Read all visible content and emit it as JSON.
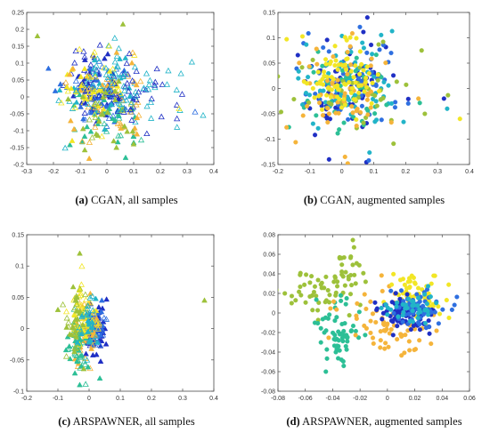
{
  "palette": [
    "#1f2fc4",
    "#2e6fe0",
    "#22b4c8",
    "#2cbf96",
    "#9dc13a",
    "#f5b43a",
    "#f2e625"
  ],
  "chart_data": [
    {
      "id": "a",
      "type": "scatter",
      "marker": "triangle",
      "fill": "mixed",
      "xlim": [
        -0.3,
        0.4
      ],
      "ylim": [
        -0.2,
        0.25
      ],
      "xticks": [
        "-0.3",
        "-0.2",
        "-0.1",
        "0",
        "0.1",
        "0.2",
        "0.3",
        "0.4"
      ],
      "yticks": [
        "-0.2",
        "-0.15",
        "-0.1",
        "-0.05",
        "0",
        "0.05",
        "0.1",
        "0.15",
        "0.2",
        "0.25"
      ],
      "caption_tag": "(a)",
      "caption_text": "CGAN, all samples",
      "grid": false,
      "clusters": [
        {
          "cx": -0.05,
          "cy": 0.03,
          "sx": 0.05,
          "sy": 0.05,
          "n": 75,
          "color": 0,
          "filled": 0.6
        },
        {
          "cx": -0.03,
          "cy": 0.0,
          "sx": 0.06,
          "sy": 0.06,
          "n": 65,
          "color": 1,
          "filled": 0.4
        },
        {
          "cx": 0.0,
          "cy": 0.02,
          "sx": 0.08,
          "sy": 0.06,
          "n": 55,
          "color": 2,
          "filled": 0.3
        },
        {
          "cx": 0.0,
          "cy": -0.08,
          "sx": 0.06,
          "sy": 0.04,
          "n": 35,
          "color": 3,
          "filled": 0.6
        },
        {
          "cx": -0.05,
          "cy": 0.02,
          "sx": 0.07,
          "sy": 0.06,
          "n": 50,
          "color": 6,
          "filled": 0.5
        },
        {
          "cx": 0.0,
          "cy": -0.02,
          "sx": 0.08,
          "sy": 0.07,
          "n": 45,
          "color": 5,
          "filled": 0.4
        },
        {
          "cx": 0.1,
          "cy": 0.0,
          "sx": 0.08,
          "sy": 0.05,
          "n": 40,
          "color": 0,
          "filled": 0.1
        },
        {
          "cx": 0.1,
          "cy": 0.02,
          "sx": 0.1,
          "sy": 0.05,
          "n": 35,
          "color": 2,
          "filled": 0.1
        },
        {
          "cx": 0.0,
          "cy": -0.05,
          "sx": 0.06,
          "sy": 0.06,
          "n": 30,
          "color": 4,
          "filled": 0.6
        }
      ],
      "points": [
        {
          "x": -0.26,
          "y": 0.18,
          "color": 4,
          "filled": true
        },
        {
          "x": 0.06,
          "y": 0.215,
          "color": 4,
          "filled": true
        },
        {
          "x": 0.36,
          "y": -0.055,
          "color": 2,
          "filled": false
        },
        {
          "x": 0.33,
          "y": -0.045,
          "color": 1,
          "filled": false
        },
        {
          "x": 0.27,
          "y": -0.035,
          "color": 6,
          "filled": false
        },
        {
          "x": 0.07,
          "y": -0.18,
          "color": 3,
          "filled": true
        },
        {
          "x": 0.1,
          "y": -0.14,
          "color": 4,
          "filled": true
        },
        {
          "x": -0.13,
          "y": -0.13,
          "color": 6,
          "filled": true
        }
      ]
    },
    {
      "id": "b",
      "type": "scatter",
      "marker": "circle",
      "fill": "filled",
      "xlim": [
        -0.2,
        0.4
      ],
      "ylim": [
        -0.15,
        0.15
      ],
      "xticks": [
        "-0.2",
        "-0.1",
        "0",
        "0.1",
        "0.2",
        "0.3",
        "0.4"
      ],
      "yticks": [
        "-0.15",
        "-0.1",
        "-0.05",
        "0",
        "0.05",
        "0.1",
        "0.15"
      ],
      "caption_tag": "(b)",
      "caption_text": "CGAN, augmented samples",
      "grid": false,
      "clusters": [
        {
          "cx": 0.0,
          "cy": 0.0,
          "sx": 0.07,
          "sy": 0.05,
          "n": 70,
          "color": 0,
          "filled": 1
        },
        {
          "cx": 0.02,
          "cy": 0.02,
          "sx": 0.08,
          "sy": 0.045,
          "n": 60,
          "color": 1,
          "filled": 1
        },
        {
          "cx": 0.02,
          "cy": 0.01,
          "sx": 0.08,
          "sy": 0.045,
          "n": 70,
          "color": 2,
          "filled": 1
        },
        {
          "cx": 0.03,
          "cy": -0.01,
          "sx": 0.08,
          "sy": 0.04,
          "n": 45,
          "color": 3,
          "filled": 1
        },
        {
          "cx": 0.05,
          "cy": 0.0,
          "sx": 0.09,
          "sy": 0.04,
          "n": 40,
          "color": 4,
          "filled": 1
        },
        {
          "cx": 0.0,
          "cy": 0.0,
          "sx": 0.07,
          "sy": 0.05,
          "n": 60,
          "color": 5,
          "filled": 1
        },
        {
          "cx": 0.0,
          "cy": 0.02,
          "sx": 0.06,
          "sy": 0.04,
          "n": 80,
          "color": 6,
          "filled": 1
        }
      ],
      "points": [
        {
          "x": 0.37,
          "y": -0.06,
          "color": 6,
          "filled": true
        },
        {
          "x": 0.33,
          "y": -0.04,
          "color": 2,
          "filled": true
        },
        {
          "x": 0.32,
          "y": -0.02,
          "color": 0,
          "filled": true
        },
        {
          "x": 0.26,
          "y": -0.05,
          "color": 4,
          "filled": true
        },
        {
          "x": 0.24,
          "y": -0.02,
          "color": 5,
          "filled": true
        },
        {
          "x": 0.25,
          "y": 0.075,
          "color": 4,
          "filled": true
        },
        {
          "x": 0.08,
          "y": 0.14,
          "color": 0,
          "filled": true
        },
        {
          "x": 0.01,
          "y": -0.135,
          "color": 5,
          "filled": true
        },
        {
          "x": -0.04,
          "y": -0.14,
          "color": 0,
          "filled": true
        }
      ]
    },
    {
      "id": "c",
      "type": "scatter",
      "marker": "triangle",
      "fill": "mixed",
      "xlim": [
        -0.2,
        0.4
      ],
      "ylim": [
        -0.1,
        0.15
      ],
      "xticks": [
        "-0.2",
        "-0.1",
        "0",
        "0.1",
        "0.2",
        "0.3",
        "0.4"
      ],
      "yticks": [
        "-0.1",
        "-0.05",
        "0",
        "0.05",
        "0.1",
        "0.15"
      ],
      "caption_tag": "(c)",
      "caption_text": "ARSPAWNER, all samples",
      "grid": false,
      "clusters": [
        {
          "cx": 0.02,
          "cy": 0.0,
          "sx": 0.015,
          "sy": 0.02,
          "n": 80,
          "color": 0,
          "filled": 0.8
        },
        {
          "cx": 0.02,
          "cy": 0.005,
          "sx": 0.015,
          "sy": 0.02,
          "n": 50,
          "color": 1,
          "filled": 0.6
        },
        {
          "cx": -0.01,
          "cy": 0.0,
          "sx": 0.02,
          "sy": 0.025,
          "n": 60,
          "color": 5,
          "filled": 0.4
        },
        {
          "cx": -0.03,
          "cy": -0.02,
          "sx": 0.02,
          "sy": 0.025,
          "n": 55,
          "color": 3,
          "filled": 0.5
        },
        {
          "cx": -0.02,
          "cy": 0.02,
          "sx": 0.02,
          "sy": 0.025,
          "n": 50,
          "color": 6,
          "filled": 0.4
        },
        {
          "cx": -0.04,
          "cy": 0.01,
          "sx": 0.02,
          "sy": 0.03,
          "n": 40,
          "color": 4,
          "filled": 0.6
        },
        {
          "cx": 0.0,
          "cy": 0.0,
          "sx": 0.015,
          "sy": 0.03,
          "n": 35,
          "color": 2,
          "filled": 0.5
        }
      ],
      "points": [
        {
          "x": -0.03,
          "y": 0.12,
          "color": 4,
          "filled": true
        },
        {
          "x": 0.37,
          "y": 0.045,
          "color": 4,
          "filled": true
        },
        {
          "x": -0.1,
          "y": 0.03,
          "color": 4,
          "filled": true
        },
        {
          "x": -0.03,
          "y": -0.09,
          "color": 3,
          "filled": true
        }
      ]
    },
    {
      "id": "d",
      "type": "scatter",
      "marker": "circle",
      "fill": "filled",
      "xlim": [
        -0.08,
        0.06
      ],
      "ylim": [
        -0.08,
        0.08
      ],
      "xticks": [
        "-0.08",
        "-0.06",
        "-0.04",
        "-0.02",
        "0",
        "0.02",
        "0.04",
        "0.06"
      ],
      "yticks": [
        "-0.08",
        "-0.06",
        "-0.04",
        "-0.02",
        "0",
        "0.02",
        "0.04",
        "0.06",
        "0.08"
      ],
      "caption_tag": "(d)",
      "caption_text": "ARSPAWNER, augmented samples",
      "grid": false,
      "clusters": [
        {
          "cx": -0.045,
          "cy": 0.025,
          "sx": 0.012,
          "sy": 0.012,
          "n": 55,
          "color": 4,
          "filled": 1
        },
        {
          "cx": -0.028,
          "cy": 0.05,
          "sx": 0.005,
          "sy": 0.01,
          "n": 15,
          "color": 4,
          "filled": 1
        },
        {
          "cx": -0.035,
          "cy": -0.02,
          "sx": 0.01,
          "sy": 0.018,
          "n": 60,
          "color": 3,
          "filled": 1
        },
        {
          "cx": 0.0,
          "cy": -0.01,
          "sx": 0.02,
          "sy": 0.018,
          "n": 70,
          "color": 5,
          "filled": 1
        },
        {
          "cx": 0.02,
          "cy": 0.02,
          "sx": 0.01,
          "sy": 0.008,
          "n": 60,
          "color": 6,
          "filled": 1
        },
        {
          "cx": 0.015,
          "cy": 0.0,
          "sx": 0.01,
          "sy": 0.009,
          "n": 90,
          "color": 0,
          "filled": 1
        },
        {
          "cx": 0.02,
          "cy": 0.005,
          "sx": 0.01,
          "sy": 0.009,
          "n": 60,
          "color": 1,
          "filled": 1
        },
        {
          "cx": 0.018,
          "cy": 0.005,
          "sx": 0.01,
          "sy": 0.008,
          "n": 40,
          "color": 2,
          "filled": 1
        }
      ],
      "points": [
        {
          "x": -0.075,
          "y": 0.02,
          "color": 4,
          "filled": true
        },
        {
          "x": -0.07,
          "y": 0.01,
          "color": 4,
          "filled": true
        },
        {
          "x": 0.045,
          "y": -0.005,
          "color": 6,
          "filled": true
        },
        {
          "x": -0.045,
          "y": -0.06,
          "color": 3,
          "filled": true
        }
      ]
    }
  ]
}
